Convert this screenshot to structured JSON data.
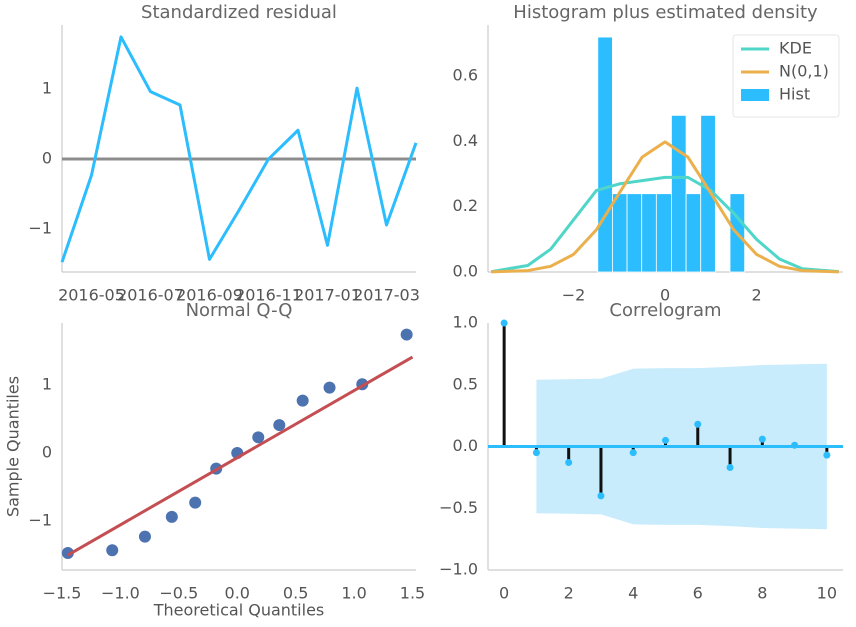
{
  "chart_data": [
    {
      "type": "line",
      "title": "Standardized residual",
      "x": [
        "2016-04",
        "2016-05",
        "2016-06",
        "2016-07",
        "2016-08",
        "2016-09",
        "2016-10",
        "2016-11",
        "2016-12",
        "2017-01",
        "2017-02",
        "2017-03",
        "2017-04"
      ],
      "values": [
        -1.47,
        -0.23,
        1.74,
        0.96,
        0.77,
        -1.43,
        -0.73,
        0,
        0.41,
        -1.23,
        1.01,
        -0.94,
        0.23
      ],
      "color": "#2cbdfe",
      "hline": 0,
      "hline_color": "#8c8c8c",
      "xticks": [
        "2016-05",
        "2016-07",
        "2016-09",
        "2016-11",
        "2017-01",
        "2017-03"
      ],
      "ylim": [
        -1.61,
        1.91
      ],
      "yticks": [
        {
          "value": -1,
          "label": "−1"
        },
        0,
        1
      ]
    },
    {
      "type": "histogram",
      "title": "Histogram plus estimated density",
      "bins": [
        -1.47,
        -1.15,
        -0.83,
        -0.51,
        -0.19,
        0.14,
        0.46,
        0.78,
        1.1,
        1.42,
        1.74
      ],
      "values": [
        0.72,
        0.24,
        0.24,
        0.24,
        0.24,
        0.48,
        0.24,
        0.48,
        0,
        0.24
      ],
      "name": "Hist",
      "color": "#2cbdfe",
      "series": [
        {
          "name": "KDE",
          "color": "#4fd6c9",
          "x": [
            -3.8,
            -3,
            -2.5,
            -2,
            -1.5,
            -1,
            -0.5,
            0,
            0.5,
            1,
            1.5,
            2,
            2.5,
            3,
            3.8
          ],
          "values": [
            0.001,
            0.02,
            0.07,
            0.16,
            0.25,
            0.27,
            0.28,
            0.29,
            0.29,
            0.25,
            0.18,
            0.1,
            0.04,
            0.01,
            0.001
          ]
        },
        {
          "name": "N(0,1)",
          "color": "#ebb04c",
          "x": [
            -3.8,
            -3,
            -2.5,
            -2,
            -1.5,
            -1,
            -0.5,
            0,
            0.5,
            1,
            1.5,
            2,
            2.5,
            3,
            3.8
          ],
          "values": [
            0.0003,
            0.0044,
            0.0175,
            0.054,
            0.1295,
            0.242,
            0.3521,
            0.3989,
            0.3521,
            0.242,
            0.1295,
            0.054,
            0.0175,
            0.0044,
            0.0003
          ]
        }
      ],
      "legend": "upper right",
      "xlim": [
        -3.87,
        3.89
      ],
      "xticks": [
        {
          "value": -2,
          "label": "−2"
        },
        0,
        2
      ],
      "ylim": [
        0,
        0.757
      ],
      "yticks": [
        {
          "value": 0,
          "label": "0.0"
        },
        0.2,
        0.4,
        0.6
      ]
    },
    {
      "type": "scatter",
      "title": "Normal Q-Q",
      "x_label": "Theoretical Quantiles",
      "y_label": "Sample Quantiles",
      "x": [
        -1.45,
        -1.07,
        -0.79,
        -0.56,
        -0.36,
        -0.18,
        0,
        0.18,
        0.36,
        0.56,
        0.79,
        1.07,
        1.45
      ],
      "values": [
        -1.47,
        -1.43,
        -1.23,
        -0.94,
        -0.73,
        -0.23,
        0,
        0.23,
        0.41,
        0.77,
        0.96,
        1.01,
        1.74
      ],
      "color": "#4c72b0",
      "fit_line": {
        "x": [
          -1.45,
          1.5
        ],
        "values": [
          -1.5,
          1.41
        ],
        "color": "#c44e52"
      },
      "xlim": [
        -1.5,
        1.53
      ],
      "xticks": [
        {
          "value": -1.5,
          "label": "−1.5"
        },
        {
          "value": -1,
          "label": "−1.0"
        },
        {
          "value": -0.5,
          "label": "−0.5"
        },
        {
          "value": 0,
          "label": "0.0"
        },
        0.5,
        {
          "value": 1,
          "label": "1.0"
        },
        1.5
      ],
      "ylim": [
        -1.72,
        1.91
      ],
      "yticks": [
        {
          "value": -1,
          "label": "−1"
        },
        0,
        1
      ]
    },
    {
      "type": "stem",
      "title": "Correlogram",
      "x": [
        0,
        1,
        2,
        3,
        4,
        5,
        6,
        7,
        8,
        9,
        10
      ],
      "values": [
        1,
        -0.05,
        -0.13,
        -0.4,
        -0.05,
        0.05,
        0.18,
        -0.17,
        0.06,
        0.01,
        -0.07
      ],
      "color": "#2cbdfe",
      "stem_color": "#111111",
      "band_x": [
        1,
        2,
        3,
        4,
        5,
        6,
        7,
        8,
        9,
        10
      ],
      "confint_upper": [
        0.54,
        0.545,
        0.55,
        0.63,
        0.635,
        0.635,
        0.645,
        0.66,
        0.665,
        0.67
      ],
      "confint_lower": [
        -0.54,
        -0.545,
        -0.55,
        -0.63,
        -0.635,
        -0.635,
        -0.645,
        -0.66,
        -0.665,
        -0.67
      ],
      "band_color": "#c8ecfc",
      "hline": 0,
      "xlim": [
        -0.5,
        10.5
      ],
      "xticks": [
        0,
        2,
        4,
        6,
        8,
        10
      ],
      "ylim": [
        -1,
        1
      ],
      "yticks": [
        {
          "value": -1,
          "label": "−1.0"
        },
        {
          "value": -0.5,
          "label": "−0.5"
        },
        {
          "value": 0,
          "label": "0.0"
        },
        0.5,
        {
          "value": 1,
          "label": "1.0"
        }
      ]
    }
  ]
}
